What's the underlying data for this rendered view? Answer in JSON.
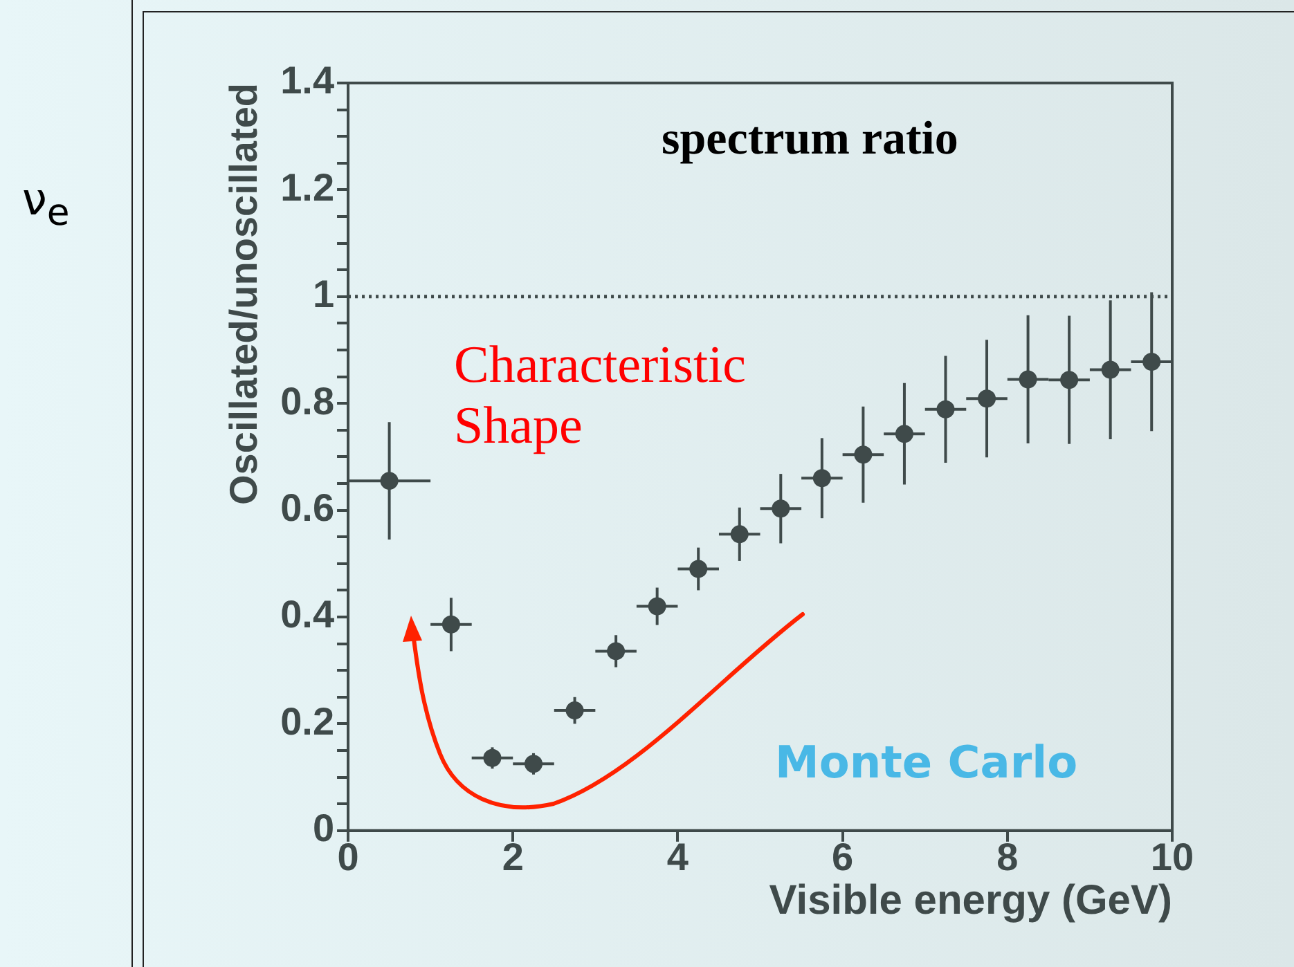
{
  "chart_data": {
    "type": "scatter",
    "xlabel": "Visible energy (GeV)",
    "ylabel": "Oscillated/unoscillated",
    "x": [
      0.5,
      1.25,
      1.75,
      2.25,
      2.75,
      3.25,
      3.75,
      4.25,
      4.75,
      5.25,
      5.75,
      6.25,
      6.75,
      7.25,
      7.75,
      8.25,
      8.75,
      9.25,
      9.75
    ],
    "series": [
      {
        "color": "#3f4a4a",
        "values": [
          0.655,
          0.386,
          0.136,
          0.125,
          0.225,
          0.336,
          0.42,
          0.49,
          0.555,
          0.603,
          0.66,
          0.704,
          0.743,
          0.789,
          0.809,
          0.845,
          0.844,
          0.863,
          0.878
        ],
        "errors": [
          0.11,
          0.05,
          0.02,
          0.02,
          0.025,
          0.03,
          0.035,
          0.04,
          0.05,
          0.065,
          0.075,
          0.09,
          0.095,
          0.1,
          0.11,
          0.12,
          0.12,
          0.13,
          0.13
        ],
        "xerrors": [
          0.5,
          0.25,
          0.25,
          0.25,
          0.25,
          0.25,
          0.25,
          0.25,
          0.25,
          0.25,
          0.25,
          0.25,
          0.25,
          0.25,
          0.25,
          0.25,
          0.25,
          0.25,
          0.25
        ]
      }
    ],
    "marker": "circle",
    "xlim": [
      0,
      10
    ],
    "xticks": [
      0,
      2,
      4,
      6,
      8,
      10
    ],
    "ylim": [
      0,
      1.4
    ],
    "yticks": [
      0,
      {
        "value": 0.05,
        "label": null
      },
      {
        "value": 0.1,
        "label": null
      },
      {
        "value": 0.15,
        "label": null
      },
      0.2,
      {
        "value": 0.25,
        "label": null
      },
      {
        "value": 0.3,
        "label": null
      },
      {
        "value": 0.35,
        "label": null
      },
      0.4,
      {
        "value": 0.45,
        "label": null
      },
      {
        "value": 0.5,
        "label": null
      },
      {
        "value": 0.55,
        "label": null
      },
      0.6,
      {
        "value": 0.65,
        "label": null
      },
      {
        "value": 0.7,
        "label": null
      },
      {
        "value": 0.75,
        "label": null
      },
      0.8,
      {
        "value": 0.85,
        "label": null
      },
      {
        "value": 0.9,
        "label": null
      },
      {
        "value": 0.95,
        "label": null
      },
      1,
      {
        "value": 1.05,
        "label": null
      },
      {
        "value": 1.1,
        "label": null
      },
      {
        "value": 1.15,
        "label": null
      },
      1.2,
      {
        "value": 1.25,
        "label": null
      },
      {
        "value": 1.3,
        "label": null
      },
      {
        "value": 1.35,
        "label": null
      },
      1.4
    ],
    "grid": false,
    "legend": false,
    "ref_lines": [
      {
        "axis": "y",
        "value": 1,
        "line_style": "dotted",
        "color": "#3f4a4a"
      }
    ],
    "annotations": [
      "spectrum ratio",
      "Characteristic Shape",
      "Monte Carlo",
      "ν$_{e}$"
    ]
  }
}
